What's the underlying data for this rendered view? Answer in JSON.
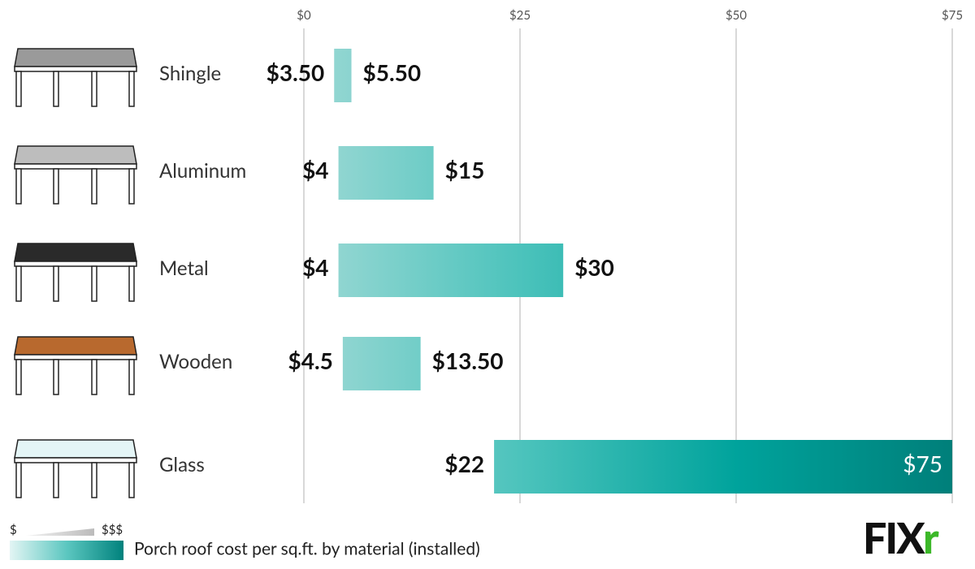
{
  "chart_data": {
    "type": "range_bar",
    "categories": [
      "Shingle",
      "Aluminum",
      "Metal",
      "Wooden",
      "Glass"
    ],
    "values": [
      [
        3.5,
        5.5
      ],
      [
        4,
        15
      ],
      [
        4,
        30
      ],
      [
        4.5,
        13.5
      ],
      [
        22,
        75
      ]
    ],
    "value_labels": [
      [
        "$3.50",
        "$5.50"
      ],
      [
        "$4",
        "$15"
      ],
      [
        "$4",
        "$30"
      ],
      [
        "$4.5",
        "$13.50"
      ],
      [
        "$22",
        "$75"
      ]
    ],
    "xlim": [
      0,
      75
    ],
    "xticks": [
      {
        "value": 0,
        "label": "$0"
      },
      {
        "value": 25,
        "label": "$25"
      },
      {
        "value": 50,
        "label": "$50"
      },
      {
        "value": 75,
        "label": "$75"
      }
    ],
    "grid": true,
    "gradient": [
      "#9dd9d5",
      "#4cc3bc",
      "#00a39c",
      "#007f7a"
    ],
    "legend": {
      "low": "$",
      "high": "$$$",
      "caption": "Porch roof cost per sq.ft. by material (installed)"
    },
    "logo": [
      "FIX",
      "r"
    ]
  }
}
